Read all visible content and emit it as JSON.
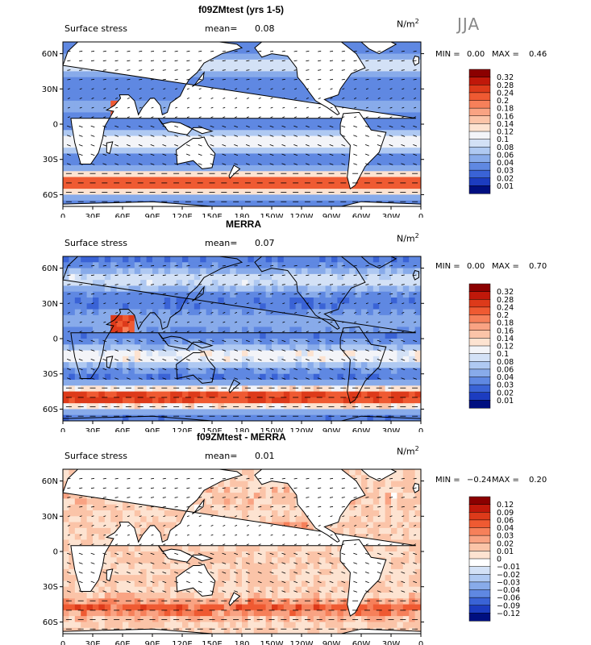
{
  "season": "JJA",
  "panels": [
    {
      "title": "f09ZMtest (yrs 1-5)",
      "field_label": "Surface stress",
      "mean_label": "mean=",
      "mean_value": "0.08",
      "units": "N/m",
      "units_sup": "2",
      "min_label": "MIN =",
      "min_value": "0.00",
      "max_label": "MAX =",
      "max_value": "0.46",
      "legend_levels": [
        "0.32",
        "0.28",
        "0.24",
        "0.2",
        "0.18",
        "0.16",
        "0.14",
        "0.12",
        "0.1",
        "0.08",
        "0.06",
        "0.04",
        "0.03",
        "0.02",
        "0.01"
      ],
      "legend_colors": [
        "#8b0000",
        "#c0180a",
        "#dd3a1a",
        "#ef5a32",
        "#f6805a",
        "#f9a383",
        "#fbc4a8",
        "#fde3d1",
        "#f3f4f8",
        "#d3e1f6",
        "#afc9f2",
        "#88abea",
        "#5f88e2",
        "#3a63d6",
        "#1c3cc0",
        "#000f80"
      ]
    },
    {
      "title": "MERRA",
      "field_label": "Surface stress",
      "mean_label": "mean=",
      "mean_value": "0.07",
      "units": "N/m",
      "units_sup": "2",
      "min_label": "MIN =",
      "min_value": "0.00",
      "max_label": "MAX =",
      "max_value": "0.70",
      "legend_levels": [
        "0.32",
        "0.28",
        "0.24",
        "0.2",
        "0.18",
        "0.16",
        "0.14",
        "0.12",
        "0.1",
        "0.08",
        "0.06",
        "0.04",
        "0.03",
        "0.02",
        "0.01"
      ],
      "legend_colors": [
        "#8b0000",
        "#c0180a",
        "#dd3a1a",
        "#ef5a32",
        "#f6805a",
        "#f9a383",
        "#fbc4a8",
        "#fde3d1",
        "#f3f4f8",
        "#d3e1f6",
        "#afc9f2",
        "#88abea",
        "#5f88e2",
        "#3a63d6",
        "#1c3cc0",
        "#000f80"
      ]
    },
    {
      "title": "f09ZMtest - MERRA",
      "field_label": "Surface stress",
      "mean_label": "mean=",
      "mean_value": "0.01",
      "units": "N/m",
      "units_sup": "2",
      "min_label": "MIN =",
      "min_value": "−0.24",
      "max_label": "MAX =",
      "max_value": "0.20",
      "legend_levels": [
        "0.12",
        "0.09",
        "0.06",
        "0.04",
        "0.03",
        "0.02",
        "0.01",
        "0",
        "−0.01",
        "−0.02",
        "−0.03",
        "−0.04",
        "−0.06",
        "−0.09",
        "−0.12"
      ],
      "legend_colors": [
        "#8b0000",
        "#c0180a",
        "#dd3a1a",
        "#ef5a32",
        "#f6805a",
        "#f9a383",
        "#fbc4a8",
        "#fde3d1",
        "#ffffff",
        "#d3e1f6",
        "#afc9f2",
        "#88abea",
        "#5f88e2",
        "#3a63d6",
        "#1c3cc0",
        "#000f80"
      ]
    }
  ],
  "chart_data": {
    "type": "heatmap",
    "variable": "Surface stress",
    "season": "JJA",
    "x_ticks": [
      "0",
      "30E",
      "60E",
      "90E",
      "120E",
      "150E",
      "180",
      "150W",
      "120W",
      "90W",
      "60W",
      "30W",
      "0"
    ],
    "y_ticks": [
      "60N",
      "30N",
      "0",
      "30S",
      "60S"
    ],
    "xlim": [
      0,
      360
    ],
    "ylim": [
      -70,
      70
    ],
    "maps": [
      {
        "title": "f09ZMtest (yrs 1-5)",
        "mean": 0.08,
        "min": 0.0,
        "max": 0.46,
        "units": "N/m2"
      },
      {
        "title": "MERRA",
        "mean": 0.07,
        "min": 0.0,
        "max": 0.7,
        "units": "N/m2"
      },
      {
        "title": "f09ZMtest - MERRA",
        "mean": 0.01,
        "min": -0.24,
        "max": 0.2,
        "units": "N/m2"
      }
    ]
  }
}
